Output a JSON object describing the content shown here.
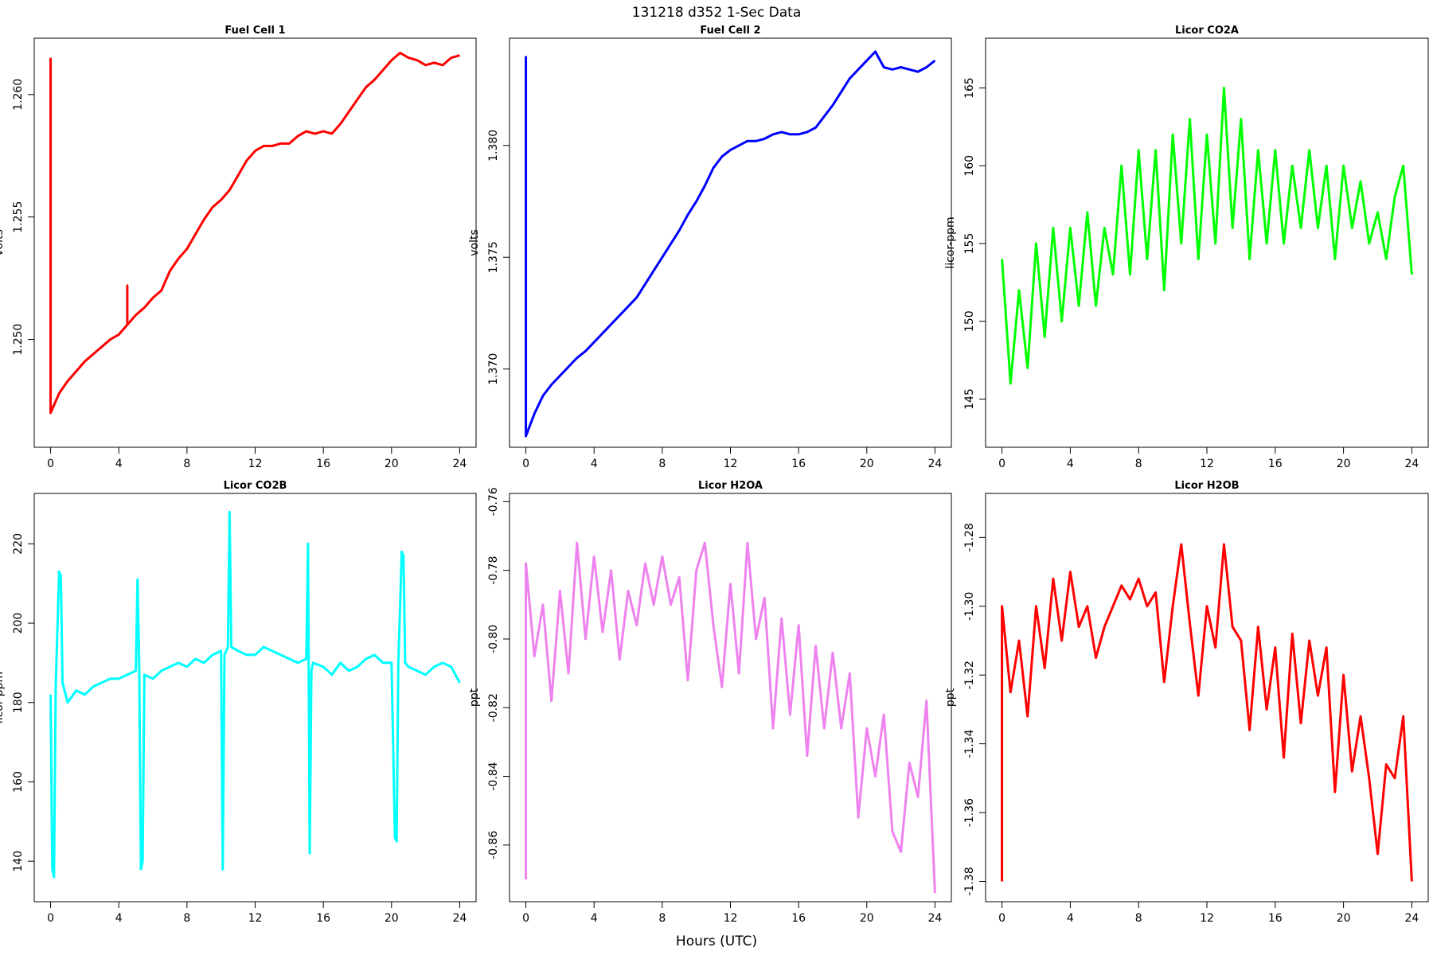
{
  "title": "131218   d352   1-Sec Data",
  "xlabel": "Hours (UTC)",
  "chart_data": [
    {
      "type": "line",
      "title": "Fuel Cell 1",
      "ylabel": "volts",
      "color": "#ff0000",
      "xlim": [
        -0.96,
        24.96
      ],
      "xticks": [
        0,
        4,
        8,
        12,
        16,
        20,
        24
      ],
      "ylim": [
        1.2456,
        1.2623
      ],
      "yticks": [
        {
          "value": 1.25,
          "label": "1.250"
        },
        {
          "value": 1.255,
          "label": "1.255"
        },
        {
          "value": 1.26,
          "label": "1.260"
        }
      ],
      "x": [
        0,
        0,
        0.5,
        1,
        1.5,
        2,
        2.5,
        3,
        3.5,
        4,
        4.5,
        4.5,
        4.5,
        5,
        5.5,
        6,
        6.5,
        7,
        7.5,
        8,
        8.5,
        9,
        9.5,
        10,
        10.5,
        11,
        11.5,
        12,
        12.5,
        13,
        13.5,
        14,
        14.5,
        15,
        15.5,
        16,
        16.5,
        17,
        17.5,
        18,
        18.5,
        19,
        19.5,
        20,
        20.5,
        21,
        21.5,
        22,
        22.5,
        23,
        23.5,
        24
      ],
      "values": [
        1.2615,
        1.247,
        1.2478,
        1.2483,
        1.2487,
        1.2491,
        1.2494,
        1.2497,
        1.25,
        1.2502,
        1.2506,
        1.2522,
        1.2506,
        1.251,
        1.2513,
        1.2517,
        1.252,
        1.2528,
        1.2533,
        1.2537,
        1.2543,
        1.2549,
        1.2554,
        1.2557,
        1.2561,
        1.2567,
        1.2573,
        1.2577,
        1.2579,
        1.2579,
        1.258,
        1.258,
        1.2583,
        1.2585,
        1.2584,
        1.2585,
        1.2584,
        1.2588,
        1.2593,
        1.2598,
        1.2603,
        1.2606,
        1.261,
        1.2614,
        1.2617,
        1.2615,
        1.2614,
        1.2612,
        1.2613,
        1.2612,
        1.2615,
        1.2616
      ]
    },
    {
      "type": "line",
      "title": "Fuel Cell 2",
      "ylabel": "volts",
      "color": "#0000ff",
      "xlim": [
        -0.96,
        24.96
      ],
      "xticks": [
        0,
        4,
        8,
        12,
        16,
        20,
        24
      ],
      "ylim": [
        1.3665,
        1.3848
      ],
      "yticks": [
        {
          "value": 1.37,
          "label": "1.370"
        },
        {
          "value": 1.375,
          "label": "1.375"
        },
        {
          "value": 1.38,
          "label": "1.380"
        }
      ],
      "x": [
        0,
        0,
        0.5,
        1,
        1.5,
        2,
        2.5,
        3,
        3.5,
        4,
        4.5,
        5,
        5.5,
        6,
        6.5,
        7,
        7.5,
        8,
        8.5,
        9,
        9.5,
        10,
        10.5,
        11,
        11.5,
        12,
        12.5,
        13,
        13.5,
        14,
        14.5,
        15,
        15.5,
        16,
        16.5,
        17,
        17.5,
        18,
        18.5,
        19,
        19.5,
        20,
        20.5,
        21,
        21.5,
        22,
        22.5,
        23,
        23.5,
        24
      ],
      "values": [
        1.384,
        1.367,
        1.368,
        1.3688,
        1.3693,
        1.3697,
        1.3701,
        1.3705,
        1.3708,
        1.3712,
        1.3716,
        1.372,
        1.3724,
        1.3728,
        1.3732,
        1.3738,
        1.3744,
        1.375,
        1.3756,
        1.3762,
        1.3769,
        1.3775,
        1.3782,
        1.379,
        1.3795,
        1.3798,
        1.38,
        1.3802,
        1.3802,
        1.3803,
        1.3805,
        1.3806,
        1.3805,
        1.3805,
        1.3806,
        1.3808,
        1.3813,
        1.3818,
        1.3824,
        1.383,
        1.3834,
        1.3838,
        1.3842,
        1.3835,
        1.3834,
        1.3835,
        1.3834,
        1.3833,
        1.3835,
        1.3838
      ]
    },
    {
      "type": "line",
      "title": "Licor CO2A",
      "ylabel": "licor-ppm",
      "color": "#00ff00",
      "xlim": [
        -0.96,
        24.96
      ],
      "xticks": [
        0,
        4,
        8,
        12,
        16,
        20,
        24
      ],
      "ylim": [
        141.9,
        168.2
      ],
      "yticks": [
        145,
        150,
        155,
        160,
        165
      ],
      "x": [
        0,
        0.5,
        1,
        1.5,
        2,
        2.5,
        3,
        3.5,
        4,
        4.5,
        5,
        5.5,
        6,
        6.5,
        7,
        7.5,
        8,
        8.5,
        9,
        9.5,
        10,
        10.5,
        11,
        11.5,
        12,
        12.5,
        13,
        13.5,
        14,
        14.5,
        15,
        15.5,
        16,
        16.5,
        17,
        17.5,
        18,
        18.5,
        19,
        19.5,
        20,
        20.5,
        21,
        21.5,
        22,
        22.5,
        23,
        23.5,
        24
      ],
      "values": [
        154,
        146,
        152,
        147,
        155,
        149,
        156,
        150,
        156,
        151,
        157,
        151,
        156,
        153,
        160,
        153,
        161,
        154,
        161,
        152,
        162,
        155,
        163,
        154,
        162,
        155,
        165,
        156,
        163,
        154,
        161,
        155,
        161,
        155,
        160,
        156,
        161,
        156,
        160,
        154,
        160,
        156,
        159,
        155,
        157,
        154,
        158,
        160,
        153
      ]
    },
    {
      "type": "line",
      "title": "Licor CO2B",
      "ylabel": "licor-ppm",
      "color": "#00ffff",
      "xlim": [
        -0.96,
        24.96
      ],
      "xticks": [
        0,
        4,
        8,
        12,
        16,
        20,
        24
      ],
      "ylim": [
        129.8,
        232.7
      ],
      "yticks": [
        140,
        160,
        180,
        200,
        220
      ],
      "x": [
        0,
        0.1,
        0.2,
        0.3,
        0.5,
        0.6,
        0.7,
        1,
        1.5,
        2,
        2.5,
        3,
        3.5,
        4,
        4.5,
        5,
        5.1,
        5.2,
        5.3,
        5.4,
        5.5,
        6,
        6.5,
        7,
        7.5,
        8,
        8.5,
        9,
        9.5,
        10,
        10.1,
        10.2,
        10.4,
        10.5,
        10.6,
        11,
        11.5,
        12,
        12.5,
        13,
        13.5,
        14,
        14.5,
        15,
        15.1,
        15.2,
        15.3,
        15.4,
        16,
        16.5,
        17,
        17.5,
        18,
        18.5,
        19,
        19.5,
        20,
        20.2,
        20.3,
        20.4,
        20.6,
        20.7,
        20.8,
        21,
        21.5,
        22,
        22.5,
        23,
        23.5,
        24
      ],
      "values": [
        182,
        138,
        136,
        184,
        213,
        212,
        185,
        180,
        183,
        182,
        184,
        185,
        186,
        186,
        187,
        188,
        211,
        189,
        138,
        140,
        187,
        186,
        188,
        189,
        190,
        189,
        191,
        190,
        192,
        193,
        138,
        192,
        194,
        228,
        194,
        193,
        192,
        192,
        194,
        193,
        192,
        191,
        190,
        191,
        220,
        142,
        188,
        190,
        189,
        187,
        190,
        188,
        189,
        191,
        192,
        190,
        190,
        146,
        145,
        190,
        218,
        217,
        190,
        189,
        188,
        187,
        189,
        190,
        189,
        185
      ]
    },
    {
      "type": "line",
      "title": "Licor H2OA",
      "ylabel": "ppt",
      "color": "#ee82ee",
      "xlim": [
        -0.96,
        24.96
      ],
      "xticks": [
        0,
        4,
        8,
        12,
        16,
        20,
        24
      ],
      "ylim": [
        -0.8765,
        -0.7576
      ],
      "yticks": [
        -0.86,
        -0.84,
        -0.82,
        {
          "value": -0.8,
          "label": "-0.80"
        },
        -0.78,
        -0.76
      ],
      "x": [
        0,
        0,
        0.5,
        1,
        1.5,
        2,
        2.5,
        3,
        3.5,
        4,
        4.5,
        5,
        5.5,
        6,
        6.5,
        7,
        7.5,
        8,
        8.5,
        9,
        9.5,
        10,
        10.5,
        11,
        11.5,
        12,
        12.5,
        13,
        13.5,
        14,
        14.5,
        15,
        15.5,
        16,
        16.5,
        17,
        17.5,
        18,
        18.5,
        19,
        19.5,
        20,
        20.5,
        21,
        21.5,
        22,
        22.5,
        23,
        23.5,
        24
      ],
      "values": [
        -0.87,
        -0.778,
        -0.805,
        -0.79,
        -0.818,
        -0.786,
        -0.81,
        -0.772,
        -0.8,
        -0.776,
        -0.798,
        -0.78,
        -0.806,
        -0.786,
        -0.796,
        -0.778,
        -0.79,
        -0.776,
        -0.79,
        -0.782,
        -0.812,
        -0.78,
        -0.772,
        -0.796,
        -0.814,
        -0.784,
        -0.81,
        -0.772,
        -0.8,
        -0.788,
        -0.826,
        -0.794,
        -0.822,
        -0.796,
        -0.834,
        -0.802,
        -0.826,
        -0.804,
        -0.826,
        -0.81,
        -0.852,
        -0.826,
        -0.84,
        -0.822,
        -0.856,
        -0.862,
        -0.836,
        -0.846,
        -0.818,
        -0.874
      ]
    },
    {
      "type": "line",
      "title": "Licor H2OB",
      "ylabel": "ppt",
      "color": "#ff0000",
      "xlim": [
        -0.96,
        24.96
      ],
      "xticks": [
        0,
        4,
        8,
        12,
        16,
        20,
        24
      ],
      "ylim": [
        -1.3859,
        -1.2672
      ],
      "yticks": [
        -1.38,
        -1.36,
        -1.34,
        -1.32,
        {
          "value": -1.3,
          "label": "-1.30"
        },
        -1.28
      ],
      "x": [
        0,
        0,
        0.5,
        1,
        1.5,
        2,
        2.5,
        3,
        3.5,
        4,
        4.5,
        5,
        5.5,
        6,
        6.5,
        7,
        7.5,
        8,
        8.5,
        9,
        9.5,
        10,
        10.5,
        11,
        11.5,
        12,
        12.5,
        13,
        13.5,
        14,
        14.5,
        15,
        15.5,
        16,
        16.5,
        17,
        17.5,
        18,
        18.5,
        19,
        19.5,
        20,
        20.5,
        21,
        21.5,
        22,
        22.5,
        23,
        23.5,
        24
      ],
      "values": [
        -1.38,
        -1.3,
        -1.325,
        -1.31,
        -1.332,
        -1.3,
        -1.318,
        -1.292,
        -1.31,
        -1.29,
        -1.306,
        -1.3,
        -1.315,
        -1.306,
        -1.3,
        -1.294,
        -1.298,
        -1.292,
        -1.3,
        -1.296,
        -1.322,
        -1.3,
        -1.282,
        -1.305,
        -1.326,
        -1.3,
        -1.312,
        -1.282,
        -1.306,
        -1.31,
        -1.336,
        -1.306,
        -1.33,
        -1.312,
        -1.344,
        -1.308,
        -1.334,
        -1.31,
        -1.326,
        -1.312,
        -1.354,
        -1.32,
        -1.348,
        -1.332,
        -1.35,
        -1.372,
        -1.346,
        -1.35,
        -1.332,
        -1.38
      ]
    }
  ]
}
